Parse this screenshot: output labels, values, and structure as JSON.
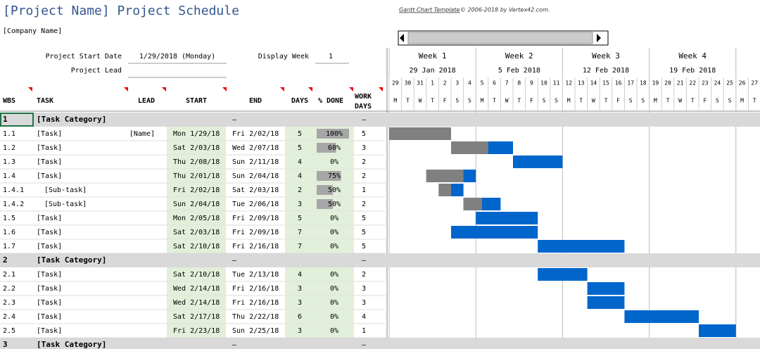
{
  "header": {
    "title": "[Project Name] Project Schedule",
    "company": "[Company Name]",
    "credit_link": "Gantt Chart Template",
    "credit_text": "© 2006-2018 by Vertex42.com.",
    "start_date_label": "Project Start Date",
    "start_date": "1/29/2018 (Monday)",
    "display_week_label": "Display Week",
    "display_week": 1,
    "project_lead_label": "Project Lead"
  },
  "timeline": {
    "weeks": [
      {
        "label": "Week 1",
        "date": "29 Jan 2018"
      },
      {
        "label": "Week 2",
        "date": "5 Feb 2018"
      },
      {
        "label": "Week 3",
        "date": "12 Feb 2018"
      },
      {
        "label": "Week 4",
        "date": "19 Feb 2018"
      }
    ],
    "days": [
      29,
      30,
      31,
      1,
      2,
      3,
      4,
      5,
      6,
      7,
      8,
      9,
      10,
      11,
      12,
      13,
      14,
      15,
      16,
      17,
      18,
      19,
      20,
      21,
      22,
      23,
      24,
      25,
      26,
      27
    ],
    "weekdays": [
      "M",
      "T",
      "W",
      "T",
      "F",
      "S",
      "S",
      "M",
      "T",
      "W",
      "T",
      "F",
      "S",
      "S",
      "M",
      "T",
      "W",
      "T",
      "F",
      "S",
      "S",
      "M",
      "T",
      "W",
      "T",
      "F",
      "S",
      "S",
      "M",
      "T"
    ]
  },
  "table": {
    "columns": [
      "WBS",
      "TASK",
      "LEAD",
      "START",
      "END",
      "DAYS",
      "% DONE",
      "WORK DAYS"
    ],
    "rows": [
      {
        "wbs": "1",
        "task": "[Task Category]",
        "end": "–",
        "work_days": "–"
      },
      {
        "wbs": "1.1",
        "task": "[Task]",
        "lead": "[Name]",
        "start": "Mon 1/29/18",
        "end": "Fri 2/02/18",
        "days": 5,
        "done": "100%",
        "work_days": 5
      },
      {
        "wbs": "1.2",
        "task": "[Task]",
        "start": "Sat 2/03/18",
        "end": "Wed 2/07/18",
        "days": 5,
        "done": "60%",
        "work_days": 3
      },
      {
        "wbs": "1.3",
        "task": "[Task]",
        "start": "Thu 2/08/18",
        "end": "Sun 2/11/18",
        "days": 4,
        "done": "0%",
        "work_days": 2
      },
      {
        "wbs": "1.4",
        "task": "[Task]",
        "start": "Thu 2/01/18",
        "end": "Sun 2/04/18",
        "days": 4,
        "done": "75%",
        "work_days": 2
      },
      {
        "wbs": "1.4.1",
        "task": "[Sub-task]",
        "start": "Fri 2/02/18",
        "end": "Sat 2/03/18",
        "days": 2,
        "done": "50%",
        "work_days": 1
      },
      {
        "wbs": "1.4.2",
        "task": "[Sub-task]",
        "start": "Sun 2/04/18",
        "end": "Tue 2/06/18",
        "days": 3,
        "done": "50%",
        "work_days": 2
      },
      {
        "wbs": "1.5",
        "task": "[Task]",
        "start": "Mon 2/05/18",
        "end": "Fri 2/09/18",
        "days": 5,
        "done": "0%",
        "work_days": 5
      },
      {
        "wbs": "1.6",
        "task": "[Task]",
        "start": "Sat 2/03/18",
        "end": "Fri 2/09/18",
        "days": 7,
        "done": "0%",
        "work_days": 5
      },
      {
        "wbs": "1.7",
        "task": "[Task]",
        "start": "Sat 2/10/18",
        "end": "Fri 2/16/18",
        "days": 7,
        "done": "0%",
        "work_days": 5
      },
      {
        "wbs": "2",
        "task": "[Task Category]",
        "end": "–",
        "work_days": "–"
      },
      {
        "wbs": "2.1",
        "task": "[Task]",
        "start": "Sat 2/10/18",
        "end": "Tue 2/13/18",
        "days": 4,
        "done": "0%",
        "work_days": 2
      },
      {
        "wbs": "2.2",
        "task": "[Task]",
        "start": "Wed 2/14/18",
        "end": "Fri 2/16/18",
        "days": 3,
        "done": "0%",
        "work_days": 3
      },
      {
        "wbs": "2.3",
        "task": "[Task]",
        "start": "Wed 2/14/18",
        "end": "Fri 2/16/18",
        "days": 3,
        "done": "0%",
        "work_days": 3
      },
      {
        "wbs": "2.4",
        "task": "[Task]",
        "start": "Sat 2/17/18",
        "end": "Thu 2/22/18",
        "days": 6,
        "done": "0%",
        "work_days": 4
      },
      {
        "wbs": "2.5",
        "task": "[Task]",
        "start": "Fri 2/23/18",
        "end": "Sun 2/25/18",
        "days": 3,
        "done": "0%",
        "work_days": 1
      },
      {
        "wbs": "3",
        "task": "[Task Category]",
        "end": "–",
        "work_days": "–"
      }
    ]
  }
}
